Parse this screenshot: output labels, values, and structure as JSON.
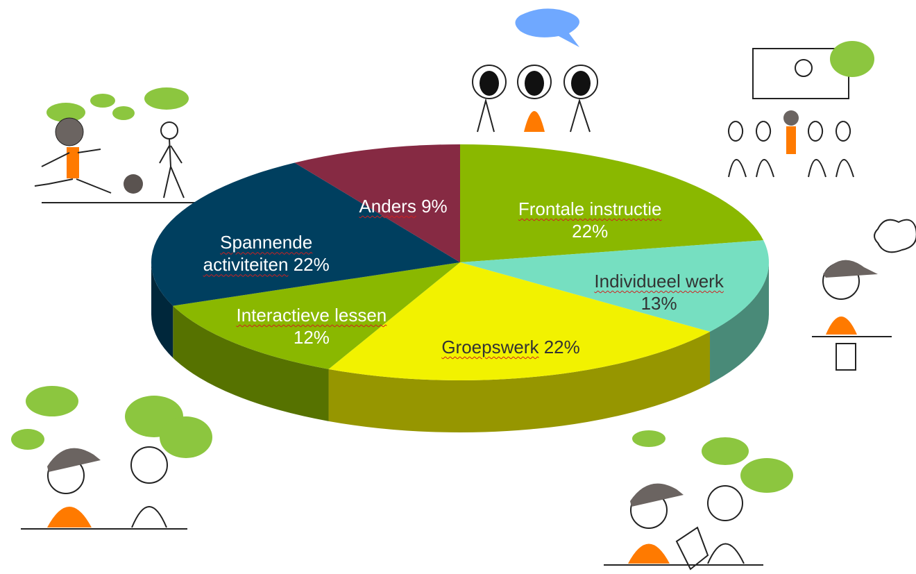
{
  "chart_data": {
    "type": "pie",
    "categories": [
      "Frontale instructie",
      "Individueel werk",
      "Groepswerk",
      "Interactieve lessen",
      "Spannende activiteiten",
      "Anders"
    ],
    "values": [
      22,
      13,
      22,
      12,
      22,
      9
    ],
    "value_labels": [
      "22%",
      "13%",
      "22%",
      "12%",
      "22%",
      "9%"
    ],
    "colors": [
      "#8ab800",
      "#76dfc1",
      "#f2f200",
      "#8ab800",
      "#003f5f",
      "#862a43"
    ]
  }
}
